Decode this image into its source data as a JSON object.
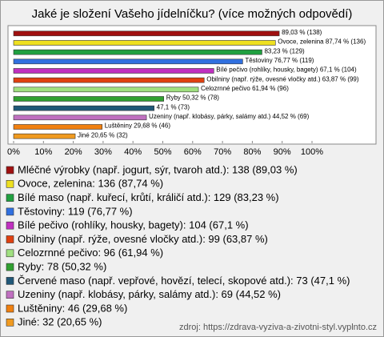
{
  "chart_data": {
    "type": "bar",
    "orientation": "horizontal",
    "title": "Jaké je složení Vašeho jídelníčku? (více možných odpovědí)",
    "categories": [
      "Mléčné výrobky (např. jogurt, sýr, tvaroh atd.)",
      "Ovoce, zelenina",
      "Bílé maso (např. kuřecí, krůtí, králičí atd.)",
      "Těstoviny",
      "Bílé pečivo (rohlíky, housky, bagety)",
      "Obilniny (např. rýže, ovesné vločky atd.)",
      "Celozrnné pečivo",
      "Ryby",
      "Červené maso (např. vepřové, hovězí, telecí, skopové atd.)",
      "Uzeniny (např. klobásy, párky, salámy atd.)",
      "Luštěniny",
      "Jiné"
    ],
    "values": [
      89.03,
      87.74,
      83.23,
      76.77,
      67.1,
      63.87,
      61.94,
      50.32,
      47.1,
      44.52,
      29.68,
      20.65
    ],
    "value_labels": [
      "89,03 % (138)",
      "Ovoce, zelenina 87,74 % (136)",
      "83,23 % (129)",
      "Těstoviny 76,77 % (119)",
      "Bílé pečivo (rohlíky, housky, bagety) 67,1 % (104)",
      "Obilniny (např. rýže, ovesné vločky atd.) 63,87 % (99)",
      "Celozrnné pečivo 61,94 % (96)",
      "Ryby 50,32 % (78)",
      "47,1 % (73)",
      "Uzeniny (např. klobásy, párky, salámy atd.) 44,52 % (69)",
      "Luštěniny 29,68 % (46)",
      "Jiné 20,65 % (32)"
    ],
    "legend_labels": [
      "Mléčné výrobky (např. jogurt, sýr, tvaroh atd.): 138 (89,03 %)",
      "Ovoce, zelenina: 136 (87,74 %)",
      "Bílé maso (např. kuřecí, krůtí, králičí atd.): 129 (83,23 %)",
      "Těstoviny: 119 (76,77 %)",
      "Bílé pečivo (rohlíky, housky, bagety): 104 (67,1 %)",
      "Obilniny (např. rýže, ovesné vločky atd.): 99 (63,87 %)",
      "Celozrnné pečivo: 96 (61,94 %)",
      "Ryby: 78 (50,32 %)",
      "Červené maso (např. vepřové, hovězí, telecí, skopové atd.): 73 (47,1 %)",
      "Uzeniny (např. klobásy, párky, salámy atd.): 69 (44,52 %)",
      "Luštěniny: 46 (29,68 %)",
      "Jiné: 32 (20,65 %)"
    ],
    "colors": [
      "#a01010",
      "#eee020",
      "#20a040",
      "#3070e0",
      "#c030c0",
      "#e04010",
      "#a0e080",
      "#30a030",
      "#205878",
      "#c070c0",
      "#f08010",
      "#f09a20"
    ],
    "xlim": [
      0,
      100
    ],
    "xticks": [
      {
        "value": 0,
        "label": "0%"
      },
      {
        "value": 10,
        "label": "10%"
      },
      {
        "value": 20,
        "label": "20%"
      },
      {
        "value": 30,
        "label": "30%"
      },
      {
        "value": 40,
        "label": "40%"
      },
      {
        "value": 50,
        "label": "50%"
      },
      {
        "value": 60,
        "label": "60%"
      },
      {
        "value": 70,
        "label": "70%"
      },
      {
        "value": 80,
        "label": "80%"
      },
      {
        "value": 90,
        "label": "90%"
      },
      {
        "value": 100,
        "label": "100%"
      }
    ],
    "source": "zdroj: https://zdrava-vyziva-a-zivotni-styl.vyplnto.cz"
  }
}
